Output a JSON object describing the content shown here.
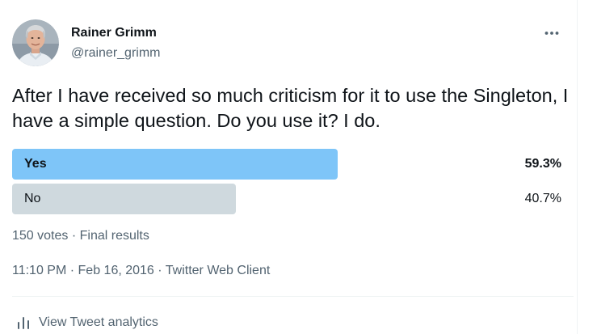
{
  "author": {
    "name": "Rainer Grimm",
    "handle": "@rainer_grimm"
  },
  "tweet": {
    "text": "After I have received so much criticism for it to use the Singleton, I have a simple question. Do you use it? I do."
  },
  "poll": {
    "options": [
      {
        "label": "Yes",
        "percent_text": "59.3%",
        "fraction": 0.593,
        "winner": true,
        "color": "#7ec5f8"
      },
      {
        "label": "No",
        "percent_text": "40.7%",
        "fraction": 0.407,
        "winner": false,
        "color": "#cfd9de"
      }
    ],
    "votes": "150 votes",
    "separator": "·",
    "status": "Final results"
  },
  "meta": {
    "time": "11:10 PM",
    "date": "Feb 16, 2016",
    "client": "Twitter Web Client",
    "separator": "·"
  },
  "analytics": {
    "label": "View Tweet analytics",
    "icon": "bar-chart-icon"
  },
  "colors": {
    "text_primary": "#0f1419",
    "text_secondary": "#536471",
    "poll_winner": "#7ec5f8",
    "poll_other": "#cfd9de",
    "divider": "#eff3f4"
  }
}
